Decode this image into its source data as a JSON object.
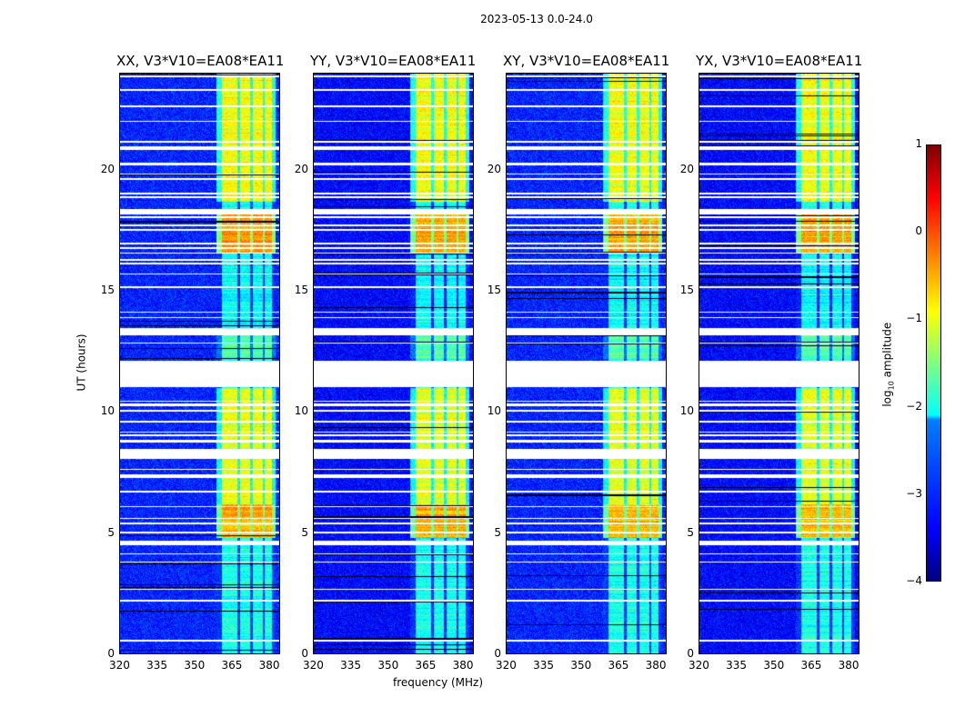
{
  "chart_data": {
    "type": "heatmap",
    "title": "2023-05-13 0.0-24.0",
    "xlabel": "frequency (MHz)",
    "ylabel": "UT (hours)",
    "xlim": [
      320,
      384.5
    ],
    "ylim": [
      0,
      24
    ],
    "xticks": [
      "320",
      "335",
      "350",
      "365",
      "380"
    ],
    "xtick_values": [
      320,
      335,
      350,
      365,
      380
    ],
    "yticks": [
      "0",
      "5",
      "10",
      "15",
      "20"
    ],
    "ytick_values": [
      0,
      5,
      10,
      15,
      20
    ],
    "panels": [
      {
        "title": "XX, V3*V10=EA08*EA11"
      },
      {
        "title": "YY, V3*V10=EA08*EA11"
      },
      {
        "title": "XY, V3*V10=EA08*EA11"
      },
      {
        "title": "YX, V3*V10=EA08*EA11"
      }
    ],
    "background_log_amplitude": -3.2,
    "band_mhz": [
      [
        361,
        367.5
      ],
      [
        368.5,
        372.5
      ],
      [
        373.5,
        377.5
      ],
      [
        378.5,
        381.5
      ]
    ],
    "band_log_amplitude_by_time": [
      {
        "ut": [
          18.7,
          24
        ],
        "value": -0.9
      },
      {
        "ut": [
          16.6,
          18.3
        ],
        "value": -0.4
      },
      {
        "ut": [
          13.5,
          16.6
        ],
        "value": -2.1
      },
      {
        "ut": [
          12.2,
          13.2
        ],
        "value": -1.7
      },
      {
        "ut": [
          7.8,
          11.0
        ],
        "value": -1.0
      },
      {
        "ut": [
          4.8,
          6.2
        ],
        "value": -0.5
      },
      {
        "ut": [
          0,
          4.8
        ],
        "value": -2.0
      },
      {
        "ut": [
          6.2,
          7.8
        ],
        "value": -1.0
      }
    ],
    "flagged_ut": [
      [
        11.05,
        12.15
      ],
      [
        13.2,
        13.5
      ],
      [
        8.1,
        8.5
      ],
      [
        4.5,
        4.7
      ],
      [
        18.2,
        18.4
      ]
    ],
    "colorbar": {
      "label": "log10 amplitude",
      "label_main": "log",
      "label_sub": "10",
      "label_rest": " amplitude",
      "ticks": [
        "1",
        "0",
        "−1",
        "−2",
        "−3",
        "−4"
      ],
      "tick_values": [
        1,
        0,
        -1,
        -2,
        -3,
        -4
      ],
      "range": [
        -4,
        1
      ],
      "colormap": "jet"
    }
  }
}
